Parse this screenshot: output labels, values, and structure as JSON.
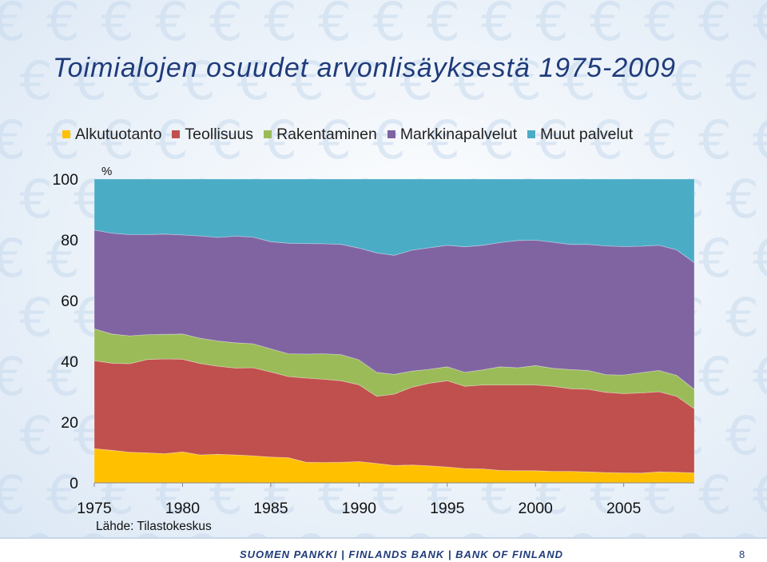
{
  "slide": {
    "title": "Toimialojen osuudet arvonlisäyksestä 1975-2009",
    "source": "Lähde: Tilastokeskus",
    "footer": "SUOMEN PANKKI | FINLANDS BANK | BANK OF FINLAND",
    "page_number": "8",
    "background_symbol": "€"
  },
  "chart_data": {
    "type": "area",
    "stacked": true,
    "unit_label": "%",
    "x": [
      1975,
      1976,
      1977,
      1978,
      1979,
      1980,
      1981,
      1982,
      1983,
      1984,
      1985,
      1986,
      1987,
      1988,
      1989,
      1990,
      1991,
      1992,
      1993,
      1994,
      1995,
      1996,
      1997,
      1998,
      1999,
      2000,
      2001,
      2002,
      2003,
      2004,
      2005,
      2006,
      2007,
      2008,
      2009
    ],
    "xticks": [
      "1975",
      "1980",
      "1985",
      "1990",
      "1995",
      "2000",
      "2005"
    ],
    "xtick_values": [
      1975,
      1980,
      1985,
      1990,
      1995,
      2000,
      2005
    ],
    "yticks": [
      "0",
      "20",
      "40",
      "60",
      "80",
      "100"
    ],
    "ytick_values": [
      0,
      20,
      40,
      60,
      80,
      100
    ],
    "ylim": [
      0,
      100
    ],
    "xlim": [
      1975,
      2009
    ],
    "grid": false,
    "legend_position": "top",
    "series": [
      {
        "name": "Alkutuotanto",
        "color": "#ffc000",
        "values": [
          11.3,
          10.7,
          10.1,
          9.9,
          9.6,
          10.2,
          9.2,
          9.4,
          9.2,
          8.9,
          8.5,
          8.3,
          6.8,
          6.7,
          6.8,
          7.0,
          6.4,
          5.7,
          5.9,
          5.6,
          5.2,
          4.7,
          4.6,
          4.1,
          4.0,
          4.0,
          3.8,
          3.8,
          3.6,
          3.4,
          3.3,
          3.2,
          3.6,
          3.5,
          3.3
        ]
      },
      {
        "name": "Teollisuus",
        "color": "#c0504d",
        "values": [
          28.9,
          28.7,
          29.1,
          30.7,
          31.2,
          30.5,
          30.1,
          29.0,
          28.6,
          29.0,
          28.0,
          26.7,
          27.7,
          27.4,
          26.8,
          25.3,
          22.1,
          23.5,
          25.6,
          27.2,
          28.4,
          27.1,
          27.6,
          28.1,
          28.2,
          28.2,
          28.0,
          27.2,
          27.2,
          26.4,
          26.1,
          26.4,
          26.4,
          25.0,
          21.1
        ]
      },
      {
        "name": "Rakentaminen",
        "color": "#9bbb59",
        "values": [
          10.5,
          9.6,
          9.2,
          8.2,
          8.1,
          8.3,
          8.3,
          8.3,
          8.3,
          7.9,
          7.6,
          7.5,
          7.9,
          8.4,
          8.6,
          8.2,
          7.9,
          6.5,
          5.3,
          4.6,
          4.6,
          4.6,
          5.0,
          6.0,
          5.7,
          6.4,
          5.9,
          6.3,
          6.2,
          5.8,
          6.1,
          6.7,
          7.0,
          6.9,
          6.4
        ]
      },
      {
        "name": "Markkinapalvelut",
        "color": "#8064a2",
        "values": [
          32.5,
          33.2,
          33.3,
          32.9,
          33.0,
          32.6,
          33.7,
          34.1,
          35.1,
          35.1,
          35.3,
          36.4,
          36.4,
          36.2,
          36.3,
          36.8,
          39.3,
          39.2,
          39.8,
          40.0,
          40.0,
          41.3,
          41.0,
          40.9,
          41.9,
          41.3,
          41.5,
          41.2,
          41.5,
          42.4,
          42.3,
          41.6,
          41.2,
          41.3,
          41.7
        ]
      },
      {
        "name": "Muut palvelut",
        "color": "#4bacc6",
        "values": [
          16.8,
          17.8,
          18.3,
          18.3,
          18.1,
          18.4,
          18.7,
          19.2,
          18.8,
          19.1,
          20.6,
          21.1,
          21.2,
          21.3,
          21.5,
          22.7,
          24.3,
          25.1,
          23.4,
          22.6,
          21.8,
          22.3,
          21.8,
          20.9,
          20.2,
          20.1,
          20.8,
          21.5,
          21.5,
          22.0,
          22.2,
          22.1,
          21.8,
          23.3,
          27.5
        ]
      }
    ]
  }
}
